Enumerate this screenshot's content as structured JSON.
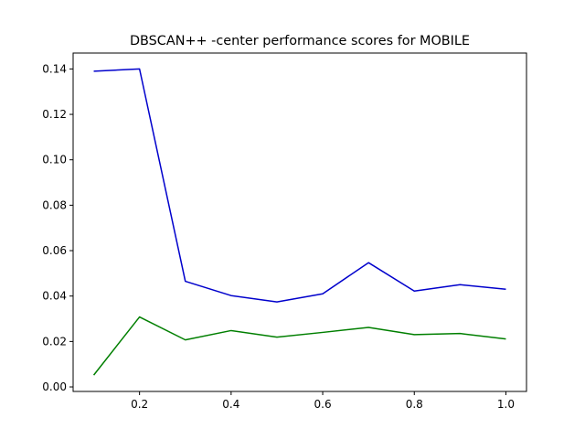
{
  "chart_data": {
    "type": "line",
    "title": "DBSCAN++ -center performance scores for MOBILE",
    "xlabel": "",
    "ylabel": "",
    "xlim": [
      0.055,
      1.045
    ],
    "ylim": [
      -0.002,
      0.147
    ],
    "xticks": [
      0.2,
      0.4,
      0.6,
      0.8,
      1.0
    ],
    "xtick_labels": [
      "0.2",
      "0.4",
      "0.6",
      "0.8",
      "1.0"
    ],
    "yticks": [
      0.0,
      0.02,
      0.04,
      0.06,
      0.08,
      0.1,
      0.12,
      0.14
    ],
    "ytick_labels": [
      "0.00",
      "0.02",
      "0.04",
      "0.06",
      "0.08",
      "0.10",
      "0.12",
      "0.14"
    ],
    "grid": false,
    "legend": "none",
    "x": [
      0.1,
      0.2,
      0.3,
      0.4,
      0.5,
      0.6,
      0.7,
      0.8,
      0.9,
      1.0
    ],
    "series": [
      {
        "color": "#0000cc",
        "values": [
          0.139,
          0.14,
          0.0465,
          0.0402,
          0.0374,
          0.041,
          0.0547,
          0.0422,
          0.045,
          0.043
        ]
      },
      {
        "color": "#007f00",
        "values": [
          0.0052,
          0.0308,
          0.0207,
          0.0248,
          0.0219,
          0.024,
          0.0262,
          0.023,
          0.0235,
          0.0211
        ]
      }
    ]
  }
}
